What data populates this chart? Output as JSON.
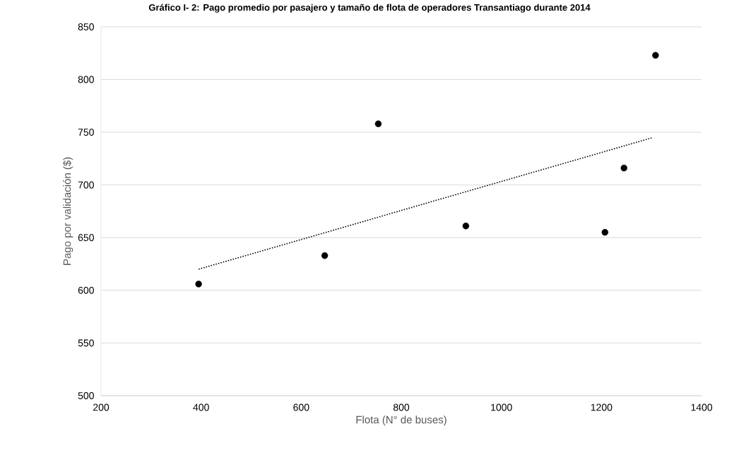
{
  "chart_data": {
    "type": "scatter",
    "title": "Gráfico I- 2: Pago promedio por pasajero y tamaño de flota de operadores Transantiago durante 2014",
    "xlabel": "Flota (N° de buses)",
    "ylabel": "Pago por validación ($)",
    "xlim": [
      200,
      1400
    ],
    "xticks": [
      200,
      400,
      600,
      800,
      1000,
      1200,
      1400
    ],
    "ylim": [
      500,
      850
    ],
    "yticks": [
      500,
      550,
      600,
      650,
      700,
      750,
      800,
      850
    ],
    "grid": "y",
    "series": [
      {
        "marker": "circle",
        "color": "#000000",
        "x": [
          395,
          647,
          754,
          929,
          1207,
          1245,
          1308
        ],
        "values": [
          606,
          633,
          758,
          661,
          655,
          716,
          823
        ]
      },
      {
        "type": "line",
        "color": "#000000",
        "line_style": "dotted",
        "marker": "none",
        "x": [
          395,
          1303
        ],
        "values": [
          620,
          745
        ]
      }
    ]
  }
}
